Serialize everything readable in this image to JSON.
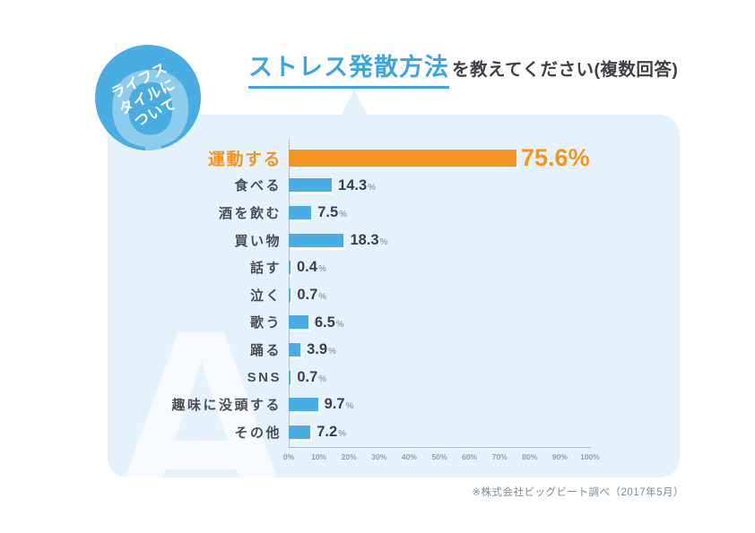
{
  "badge": {
    "letter": "Q",
    "lines": [
      "ライフス",
      "タイルに",
      "ついて"
    ]
  },
  "title": {
    "highlight": "ストレス発散方法",
    "rest": "を教えてください(複数回答)"
  },
  "answer_watermark": "A",
  "chart_data": {
    "type": "bar",
    "orientation": "horizontal",
    "title": "ストレス発散方法を教えてください(複数回答)",
    "categories": [
      "運動する",
      "食べる",
      "酒を飲む",
      "買い物",
      "話す",
      "泣く",
      "歌う",
      "踊る",
      "SNS",
      "趣味に没頭する",
      "その他"
    ],
    "values": [
      75.6,
      14.3,
      7.5,
      18.3,
      0.4,
      0.7,
      6.5,
      3.9,
      0.7,
      9.7,
      7.2
    ],
    "value_labels": [
      "75.6%",
      "14.3%",
      "7.5%",
      "18.3%",
      "0.4%",
      "0.7%",
      "6.5%",
      "3.9%",
      "0.7%",
      "9.7%",
      "7.2%"
    ],
    "highlight_index": 0,
    "xlabel": "",
    "ylabel": "",
    "xlim": [
      0,
      100
    ],
    "x_ticks": [
      "0%",
      "10%",
      "20%",
      "30%",
      "40%",
      "50%",
      "60%",
      "70%",
      "80%",
      "90%",
      "100%"
    ],
    "grid": false,
    "colors": {
      "bar": "#47ade2",
      "highlight": "#f3941f",
      "panel_background": "#e6f2fb",
      "title_accent": "#3aa5e0",
      "badge_background": "#4aade2",
      "text_dark": "#3d4045",
      "axis_gray": "#b3bec6"
    }
  },
  "footer": {
    "source": "※株式会社ビッグビート調べ（2017年5月）"
  }
}
